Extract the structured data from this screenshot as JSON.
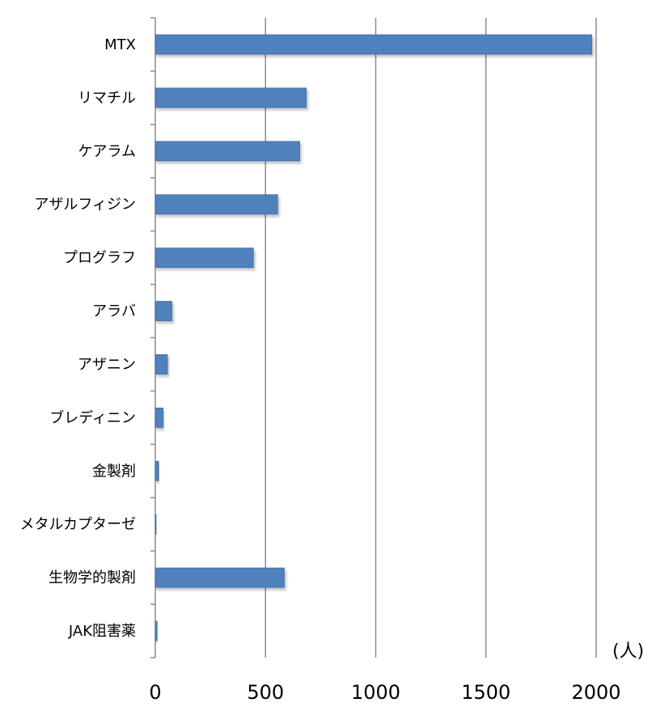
{
  "chart_data": {
    "type": "bar",
    "orientation": "horizontal",
    "categories": [
      "MTX",
      "リマチル",
      "ケアラム",
      "アザルフィジン",
      "プログラフ",
      "アラバ",
      "アザニン",
      "ブレディニン",
      "金製剤",
      "メタルカプターゼ",
      "生物学的製剤",
      "JAK阻害薬"
    ],
    "values": [
      1980,
      685,
      655,
      555,
      445,
      75,
      55,
      35,
      15,
      3,
      585,
      8
    ],
    "unit_label": "(人)",
    "xlim": [
      0,
      2000
    ],
    "xticks": [
      0,
      500,
      1000,
      1500,
      2000
    ],
    "grid": true,
    "bar_color": "#4f81bd",
    "bar_border_color": "#3a6ea5"
  }
}
